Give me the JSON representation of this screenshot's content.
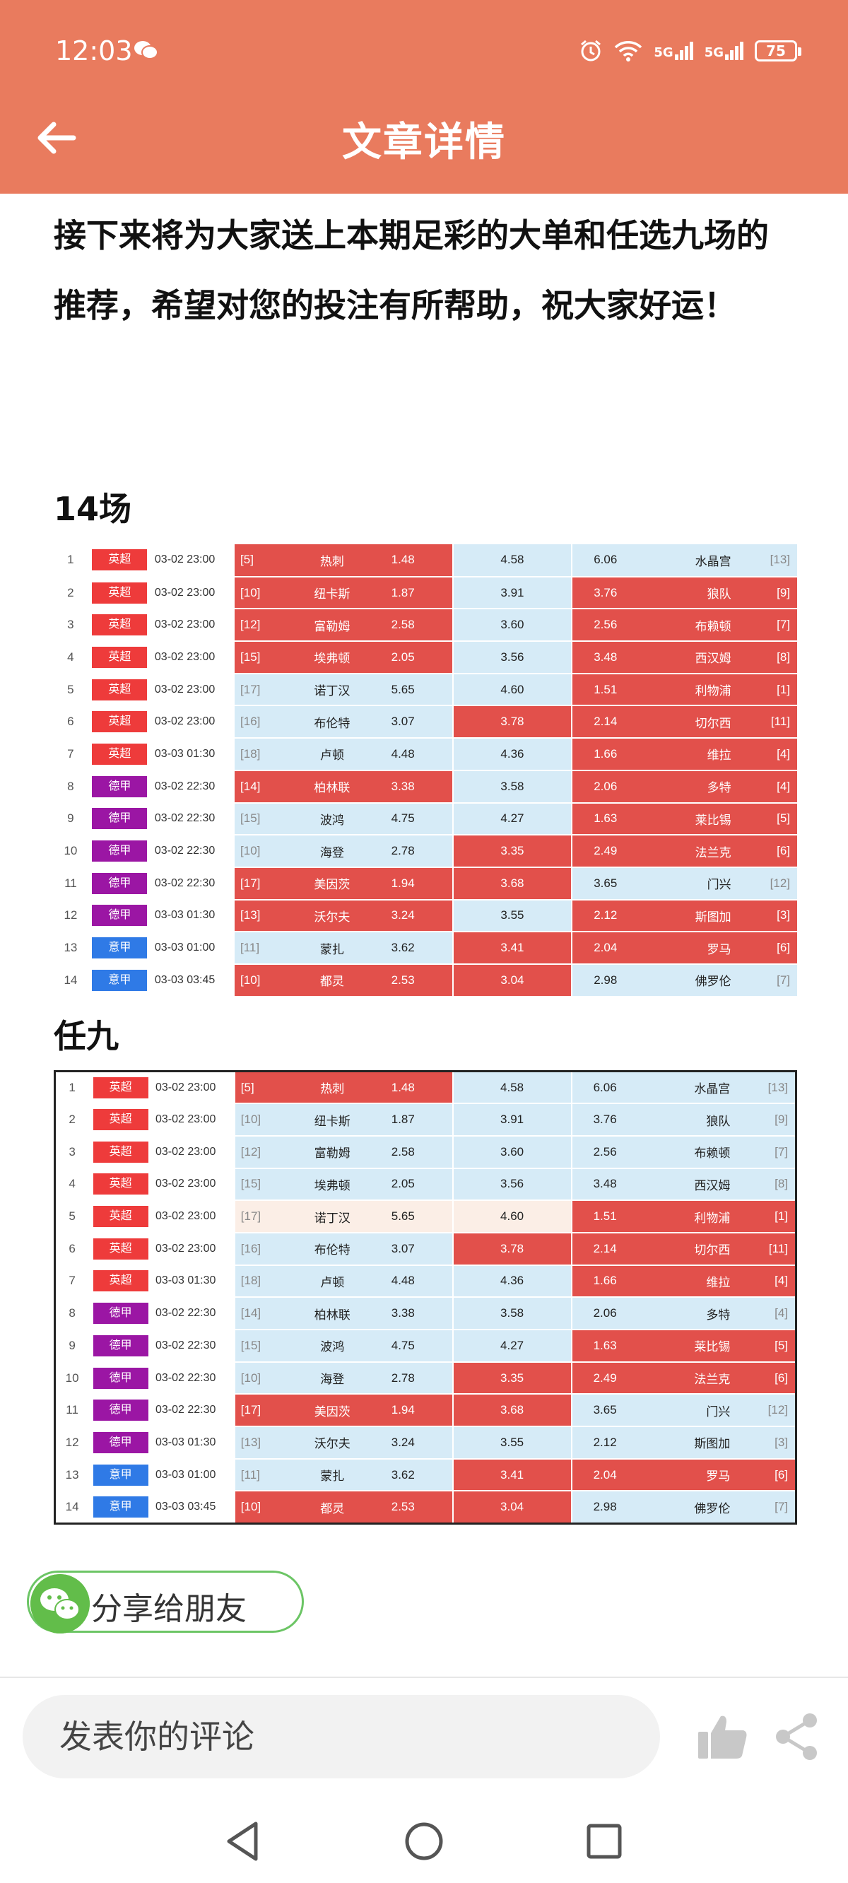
{
  "status": {
    "time": "12:03",
    "battery": "75",
    "network1": "5G",
    "network2": "5G"
  },
  "header": {
    "title": "文章详情"
  },
  "article": {
    "text": "接下来将为大家送上本期足彩的大单和任选九场的推荐，希望对您的投注有所帮助，祝大家好运！"
  },
  "sections": {
    "s14": "14场",
    "r9": "任九"
  },
  "colors": {
    "header": "#e97b5e",
    "red": "#e2504b",
    "blue_light": "#d6ebf7",
    "league_epl": "#ee3b3b",
    "league_bundes": "#9b16a4",
    "league_serie": "#2f7ae6",
    "share_green": "#62bd4a"
  },
  "table14": [
    {
      "n": "1",
      "league": "英超",
      "time": "03-02 23:00",
      "hr": "[5]",
      "home": "热刺",
      "ho": "1.48",
      "d": "4.58",
      "ao": "6.06",
      "away": "水晶宫",
      "ar": "[13]"
    },
    {
      "n": "2",
      "league": "英超",
      "time": "03-02 23:00",
      "hr": "[10]",
      "home": "纽卡斯",
      "ho": "1.87",
      "d": "3.91",
      "ao": "3.76",
      "away": "狼队",
      "ar": "[9]"
    },
    {
      "n": "3",
      "league": "英超",
      "time": "03-02 23:00",
      "hr": "[12]",
      "home": "富勒姆",
      "ho": "2.58",
      "d": "3.60",
      "ao": "2.56",
      "away": "布赖顿",
      "ar": "[7]"
    },
    {
      "n": "4",
      "league": "英超",
      "time": "03-02 23:00",
      "hr": "[15]",
      "home": "埃弗顿",
      "ho": "2.05",
      "d": "3.56",
      "ao": "3.48",
      "away": "西汉姆",
      "ar": "[8]"
    },
    {
      "n": "5",
      "league": "英超",
      "time": "03-02 23:00",
      "hr": "[17]",
      "home": "诺丁汉",
      "ho": "5.65",
      "d": "4.60",
      "ao": "1.51",
      "away": "利物浦",
      "ar": "[1]"
    },
    {
      "n": "6",
      "league": "英超",
      "time": "03-02 23:00",
      "hr": "[16]",
      "home": "布伦特",
      "ho": "3.07",
      "d": "3.78",
      "ao": "2.14",
      "away": "切尔西",
      "ar": "[11]"
    },
    {
      "n": "7",
      "league": "英超",
      "time": "03-03 01:30",
      "hr": "[18]",
      "home": "卢顿",
      "ho": "4.48",
      "d": "4.36",
      "ao": "1.66",
      "away": "维拉",
      "ar": "[4]"
    },
    {
      "n": "8",
      "league": "德甲",
      "time": "03-02 22:30",
      "hr": "[14]",
      "home": "柏林联",
      "ho": "3.38",
      "d": "3.58",
      "ao": "2.06",
      "away": "多特",
      "ar": "[4]"
    },
    {
      "n": "9",
      "league": "德甲",
      "time": "03-02 22:30",
      "hr": "[15]",
      "home": "波鸿",
      "ho": "4.75",
      "d": "4.27",
      "ao": "1.63",
      "away": "莱比锡",
      "ar": "[5]"
    },
    {
      "n": "10",
      "league": "德甲",
      "time": "03-02 22:30",
      "hr": "[10]",
      "home": "海登",
      "ho": "2.78",
      "d": "3.35",
      "ao": "2.49",
      "away": "法兰克",
      "ar": "[6]"
    },
    {
      "n": "11",
      "league": "德甲",
      "time": "03-02 22:30",
      "hr": "[17]",
      "home": "美因茨",
      "ho": "1.94",
      "d": "3.68",
      "ao": "3.65",
      "away": "门兴",
      "ar": "[12]"
    },
    {
      "n": "12",
      "league": "德甲",
      "time": "03-03 01:30",
      "hr": "[13]",
      "home": "沃尔夫",
      "ho": "3.24",
      "d": "3.55",
      "ao": "2.12",
      "away": "斯图加",
      "ar": "[3]"
    },
    {
      "n": "13",
      "league": "意甲",
      "time": "03-03 01:00",
      "hr": "[11]",
      "home": "蒙扎",
      "ho": "3.62",
      "d": "3.41",
      "ao": "2.04",
      "away": "罗马",
      "ar": "[6]"
    },
    {
      "n": "14",
      "league": "意甲",
      "time": "03-03 03:45",
      "hr": "[10]",
      "home": "都灵",
      "ho": "2.53",
      "d": "3.04",
      "ao": "2.98",
      "away": "佛罗伦",
      "ar": "[7]"
    }
  ],
  "share": {
    "label": "分享给朋友"
  },
  "comment": {
    "placeholder": "发表你的评论"
  }
}
